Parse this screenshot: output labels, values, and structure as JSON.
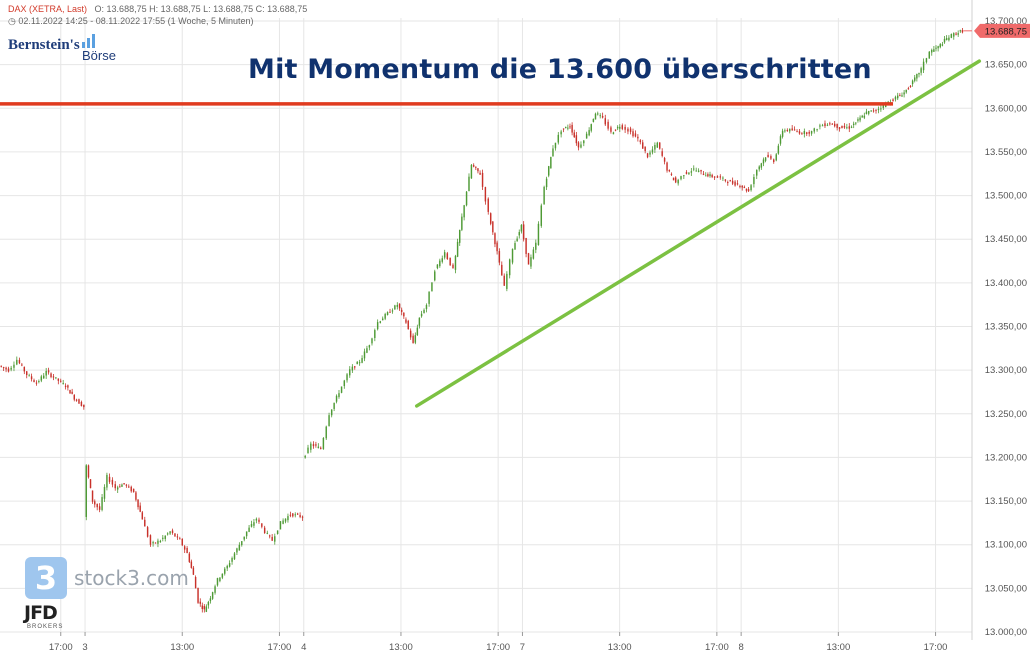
{
  "header": {
    "symbol_label": "DAX (XETRA, Last)",
    "ohlc": "O: 13.688,75   H: 13.688,75   L: 13.688,75   C: 13.688,75",
    "period": "02.11.2022 14:25 - 08.11.2022 17:55  (1 Woche, 5 Minuten)"
  },
  "logo": {
    "line1": "Bernstein's",
    "line2": "Börse"
  },
  "headline": "Mit Momentum die 13.600 überschritten",
  "watermark": {
    "badge": "3",
    "text": "stock3.com",
    "broker": "JFD",
    "broker_sub": "BROKERS"
  },
  "colors": {
    "up": "#4e9a35",
    "down": "#c8312a",
    "resistance": "#e03b1f",
    "trendline": "#7cc142",
    "price_badge": "#f06a6a",
    "grid": "#e6e6e6",
    "headline": "#10326e"
  },
  "chart_data": {
    "type": "candlestick",
    "title": "Mit Momentum die 13.600 überschritten",
    "instrument": "DAX (XETRA, Last)",
    "interval": "5 Minuten",
    "ylim": [
      13000,
      13700
    ],
    "y_ticks": [
      "13.000,00",
      "13.050,00",
      "13.100,00",
      "13.150,00",
      "13.200,00",
      "13.250,00",
      "13.300,00",
      "13.350,00",
      "13.400,00",
      "13.450,00",
      "13.500,00",
      "13.550,00",
      "13.600,00",
      "13.650,00",
      "13.700,00"
    ],
    "y_tick_values": [
      13000,
      13050,
      13100,
      13150,
      13200,
      13250,
      13300,
      13350,
      13400,
      13450,
      13500,
      13550,
      13600,
      13650,
      13700
    ],
    "x_range": [
      0,
      80
    ],
    "x_ticks": [
      {
        "label": "17:00",
        "x": 5
      },
      {
        "label": "3",
        "x": 7
      },
      {
        "label": "13:00",
        "x": 15
      },
      {
        "label": "17:00",
        "x": 23
      },
      {
        "label": "4",
        "x": 25
      },
      {
        "label": "13:00",
        "x": 33
      },
      {
        "label": "17:00",
        "x": 41
      },
      {
        "label": "7",
        "x": 43
      },
      {
        "label": "13:00",
        "x": 51
      },
      {
        "label": "17:00",
        "x": 59
      },
      {
        "label": "8",
        "x": 61
      },
      {
        "label": "13:00",
        "x": 69
      },
      {
        "label": "17:00",
        "x": 77
      }
    ],
    "last_price": 13688.75,
    "last_price_label": "13.688,75",
    "resistance_level": 13605,
    "trendline": {
      "x": [
        34.3,
        80.6
      ],
      "y": [
        13259,
        13654
      ]
    },
    "price_path": [
      [
        0,
        13305
      ],
      [
        0.8,
        13300
      ],
      [
        1.5,
        13312
      ],
      [
        2.3,
        13295
      ],
      [
        3.1,
        13285
      ],
      [
        3.9,
        13298
      ],
      [
        4.7,
        13290
      ],
      [
        5.5,
        13282
      ],
      [
        6.2,
        13268
      ],
      [
        7,
        13258
      ],
      [
        7,
        13132
      ],
      [
        7.2,
        13190
      ],
      [
        7.7,
        13150
      ],
      [
        8.3,
        13140
      ],
      [
        8.9,
        13178
      ],
      [
        9.6,
        13165
      ],
      [
        10.3,
        13170
      ],
      [
        11.1,
        13160
      ],
      [
        11.8,
        13130
      ],
      [
        12.5,
        13100
      ],
      [
        13.3,
        13105
      ],
      [
        14.1,
        13115
      ],
      [
        14.9,
        13105
      ],
      [
        15.5,
        13090
      ],
      [
        16,
        13065
      ],
      [
        16.4,
        13035
      ],
      [
        16.9,
        13025
      ],
      [
        17.4,
        13040
      ],
      [
        18,
        13060
      ],
      [
        18.8,
        13075
      ],
      [
        19.6,
        13095
      ],
      [
        20.4,
        13115
      ],
      [
        21.2,
        13130
      ],
      [
        21.9,
        13115
      ],
      [
        22.5,
        13105
      ],
      [
        23.2,
        13125
      ],
      [
        24,
        13135
      ],
      [
        25,
        13132
      ],
      [
        25,
        13198
      ],
      [
        25.7,
        13215
      ],
      [
        26.5,
        13210
      ],
      [
        27.2,
        13250
      ],
      [
        28,
        13275
      ],
      [
        28.9,
        13300
      ],
      [
        29.7,
        13310
      ],
      [
        30.5,
        13330
      ],
      [
        31.2,
        13355
      ],
      [
        32,
        13365
      ],
      [
        32.8,
        13375
      ],
      [
        33.5,
        13355
      ],
      [
        34.1,
        13330
      ],
      [
        34.6,
        13360
      ],
      [
        35.2,
        13375
      ],
      [
        35.9,
        13415
      ],
      [
        36.7,
        13435
      ],
      [
        37.4,
        13415
      ],
      [
        38.1,
        13475
      ],
      [
        38.9,
        13535
      ],
      [
        39.6,
        13525
      ],
      [
        40.3,
        13480
      ],
      [
        41,
        13435
      ],
      [
        41.6,
        13395
      ],
      [
        42.3,
        13440
      ],
      [
        43,
        13465
      ],
      [
        43.6,
        13420
      ],
      [
        44.2,
        13445
      ],
      [
        44.9,
        13510
      ],
      [
        45.6,
        13555
      ],
      [
        46.3,
        13575
      ],
      [
        47,
        13580
      ],
      [
        47.7,
        13555
      ],
      [
        48.4,
        13570
      ],
      [
        49.1,
        13595
      ],
      [
        49.7,
        13588
      ],
      [
        50.4,
        13572
      ],
      [
        51.1,
        13580
      ],
      [
        51.8,
        13575
      ],
      [
        52.6,
        13565
      ],
      [
        53.4,
        13545
      ],
      [
        54.2,
        13560
      ],
      [
        55,
        13530
      ],
      [
        55.7,
        13515
      ],
      [
        56.4,
        13525
      ],
      [
        57.2,
        13530
      ],
      [
        58,
        13525
      ],
      [
        58.7,
        13522
      ],
      [
        59.4,
        13520
      ],
      [
        60.2,
        13515
      ],
      [
        61,
        13512
      ],
      [
        61.7,
        13505
      ],
      [
        62.4,
        13530
      ],
      [
        63.1,
        13545
      ],
      [
        63.8,
        13540
      ],
      [
        64.5,
        13575
      ],
      [
        65.3,
        13575
      ],
      [
        66.1,
        13572
      ],
      [
        66.9,
        13573
      ],
      [
        67.6,
        13580
      ],
      [
        68.4,
        13583
      ],
      [
        69.2,
        13578
      ],
      [
        70,
        13578
      ],
      [
        70.7,
        13586
      ],
      [
        71.4,
        13595
      ],
      [
        72.2,
        13598
      ],
      [
        73,
        13605
      ],
      [
        73.8,
        13612
      ],
      [
        74.5,
        13618
      ],
      [
        75.2,
        13630
      ],
      [
        75.9,
        13645
      ],
      [
        76.6,
        13665
      ],
      [
        77.3,
        13670
      ],
      [
        78,
        13680
      ],
      [
        78.6,
        13685
      ],
      [
        79.3,
        13688.75
      ]
    ]
  }
}
